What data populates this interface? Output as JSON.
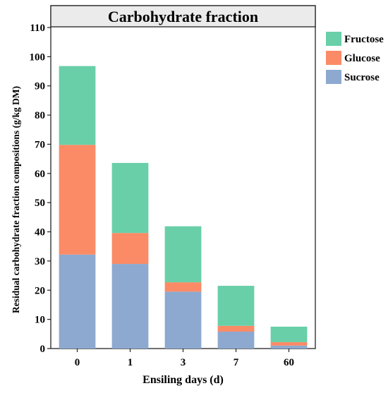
{
  "chart_data": {
    "type": "bar",
    "stacked": true,
    "title": "Carbohydrate fraction",
    "xlabel": "Ensiling days (d)",
    "ylabel": "Residual carbohydrate fraction compositions (g/kg DM)",
    "categories": [
      "0",
      "1",
      "3",
      "7",
      "60"
    ],
    "ylim": [
      0,
      110
    ],
    "yticks": [
      0,
      10,
      20,
      30,
      40,
      50,
      60,
      70,
      80,
      90,
      100,
      110
    ],
    "series": [
      {
        "name": "Sucrose",
        "color": "#8DA9CF",
        "values": [
          32.2,
          29.0,
          19.5,
          5.8,
          1.0
        ]
      },
      {
        "name": "Glucose",
        "color": "#FA8B66",
        "values": [
          37.6,
          10.6,
          3.2,
          2.0,
          1.2
        ]
      },
      {
        "name": "Fructose",
        "color": "#69CFA8",
        "values": [
          27.0,
          24.0,
          19.2,
          13.7,
          5.3
        ]
      }
    ],
    "legend_order": [
      "Fructose",
      "Glucose",
      "Sucrose"
    ],
    "legend_position": "top-right",
    "grid": false,
    "title_band_color": "#EBEBEB"
  }
}
